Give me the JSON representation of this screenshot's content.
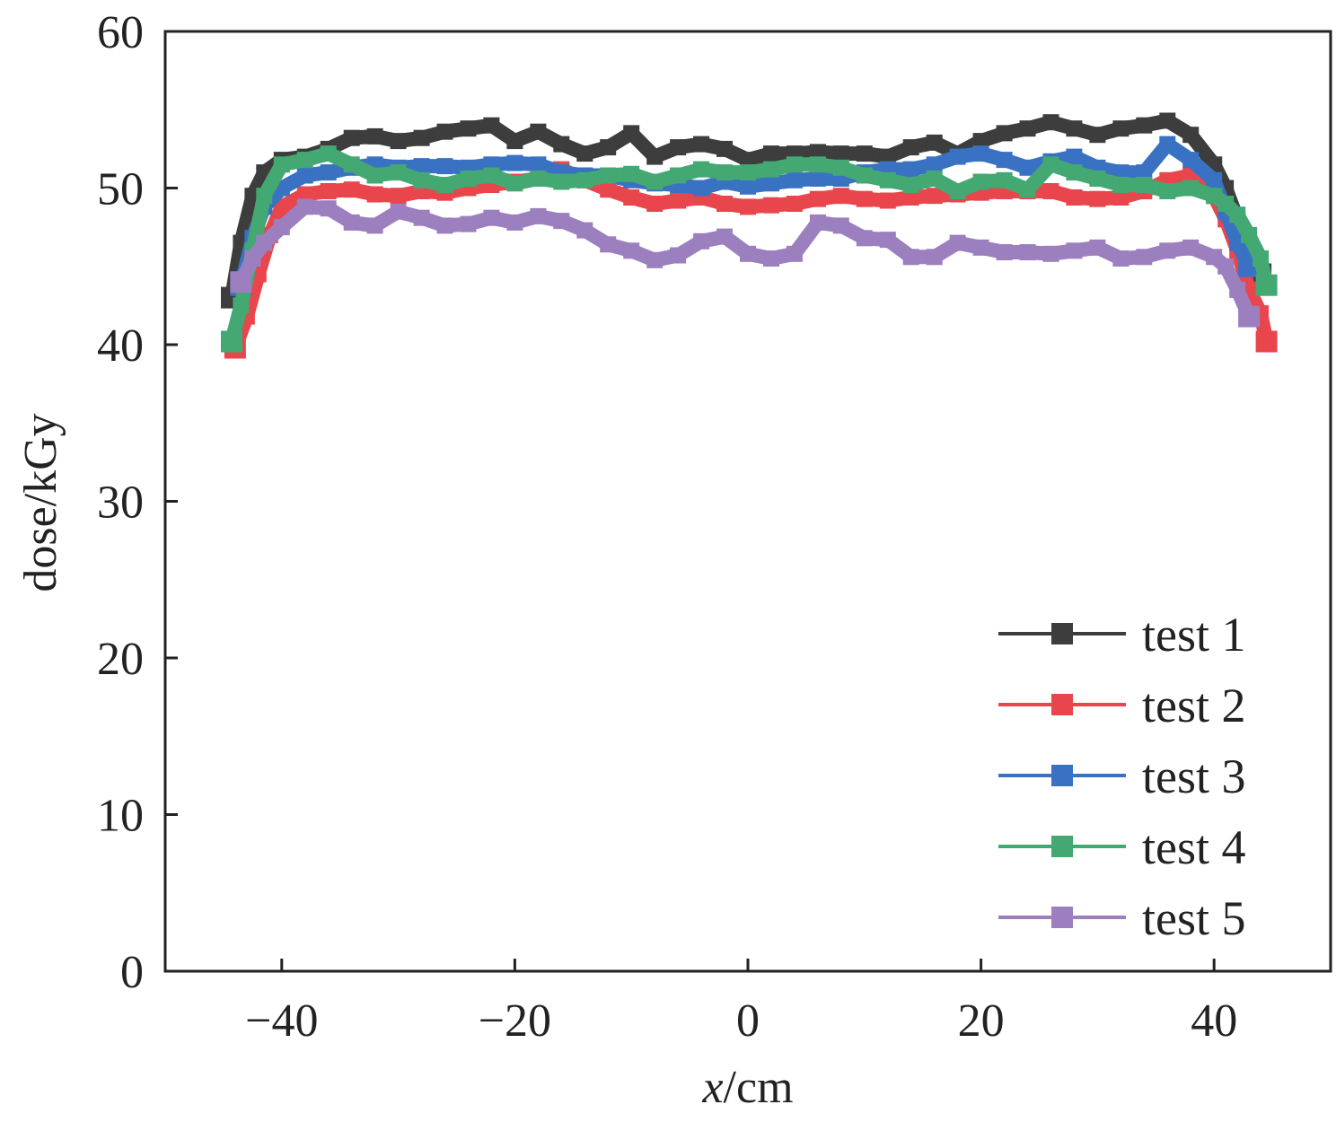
{
  "chart_data": {
    "type": "line",
    "xlabel_var": "x",
    "xlabel_unit": "/cm",
    "ylabel": "dose/kGy",
    "xlim": [
      -50,
      50
    ],
    "ylim": [
      0,
      60
    ],
    "xticks": [
      -40,
      -20,
      0,
      20,
      40
    ],
    "xtick_labels": [
      "−40",
      "−20",
      "0",
      "20",
      "40"
    ],
    "yticks": [
      0,
      10,
      20,
      30,
      40,
      50,
      60
    ],
    "ytick_labels": [
      "0",
      "10",
      "20",
      "30",
      "40",
      "50",
      "60"
    ],
    "grid": false,
    "legend_position": "bottom-right",
    "series": [
      {
        "name": "test 1",
        "color": "#3d3d3d",
        "x": [
          -44.3,
          -43.5,
          -42.5,
          -41.5,
          -40,
          -38,
          -36,
          -34,
          -32,
          -30,
          -28,
          -26,
          -24,
          -22,
          -20,
          -18,
          -16,
          -14,
          -12,
          -10,
          -8,
          -6,
          -4,
          -2,
          0,
          2,
          4,
          6,
          8,
          10,
          12,
          14,
          16,
          18,
          20,
          22,
          24,
          26,
          28,
          30,
          32,
          34,
          36,
          38,
          40,
          41,
          42,
          43,
          44
        ],
        "y": [
          43.0,
          46.5,
          49.5,
          51.0,
          51.8,
          52.0,
          52.5,
          53.2,
          53.3,
          53.0,
          53.2,
          53.6,
          53.8,
          54.0,
          53.0,
          53.6,
          52.8,
          52.2,
          52.6,
          53.5,
          52.0,
          52.6,
          52.8,
          52.5,
          51.8,
          52.2,
          52.2,
          52.3,
          52.2,
          52.2,
          52.0,
          52.6,
          52.9,
          52.2,
          53.0,
          53.5,
          53.8,
          54.2,
          53.8,
          53.4,
          53.8,
          54.0,
          54.3,
          53.4,
          51.5,
          50.0,
          48.0,
          46.0,
          44.5
        ]
      },
      {
        "name": "test 2",
        "color": "#e8464c",
        "x": [
          -44,
          -43,
          -42,
          -41,
          -40,
          -38,
          -36,
          -34,
          -32,
          -30,
          -28,
          -26,
          -24,
          -22,
          -20,
          -18,
          -16,
          -14,
          -12,
          -10,
          -8,
          -6,
          -4,
          -2,
          0,
          2,
          4,
          6,
          8,
          10,
          12,
          14,
          16,
          18,
          20,
          22,
          24,
          26,
          28,
          30,
          32,
          34,
          36,
          38,
          40,
          41,
          42,
          43,
          44,
          44.5
        ],
        "y": [
          39.8,
          41.8,
          44.5,
          47.0,
          48.8,
          49.6,
          49.8,
          49.9,
          49.6,
          49.5,
          49.8,
          49.7,
          50.0,
          50.2,
          50.4,
          50.6,
          51.2,
          50.5,
          49.9,
          49.4,
          49.0,
          49.2,
          49.4,
          49.0,
          48.8,
          48.9,
          49.0,
          49.3,
          49.5,
          49.3,
          49.2,
          49.4,
          49.5,
          49.6,
          49.7,
          49.8,
          49.8,
          49.8,
          49.4,
          49.3,
          49.4,
          49.8,
          50.5,
          50.8,
          49.5,
          48.0,
          46.0,
          43.5,
          42.0,
          40.2
        ]
      },
      {
        "name": "test 3",
        "color": "#3a72c3",
        "x": [
          -43.5,
          -42.5,
          -41.5,
          -40,
          -38,
          -36,
          -34,
          -32,
          -30,
          -28,
          -26,
          -24,
          -22,
          -20,
          -18,
          -16,
          -14,
          -12,
          -10,
          -8,
          -6,
          -4,
          -2,
          0,
          2,
          4,
          6,
          8,
          10,
          12,
          14,
          16,
          18,
          20,
          22,
          24,
          26,
          28,
          30,
          32,
          34,
          36,
          38,
          40,
          41,
          42,
          43
        ],
        "y": [
          43.8,
          46.8,
          48.8,
          50.0,
          50.8,
          51.0,
          51.3,
          51.5,
          51.3,
          51.4,
          51.4,
          51.3,
          51.5,
          51.6,
          51.5,
          51.0,
          50.8,
          50.8,
          50.5,
          50.3,
          50.2,
          50.0,
          50.4,
          50.1,
          50.3,
          50.5,
          50.6,
          50.6,
          51.0,
          51.2,
          51.2,
          51.5,
          52.0,
          52.2,
          51.8,
          51.3,
          51.7,
          52.0,
          51.3,
          51.0,
          51.0,
          52.8,
          51.8,
          50.5,
          48.5,
          46.5,
          45.0
        ]
      },
      {
        "name": "test 4",
        "color": "#43a872",
        "x": [
          -44.3,
          -43.5,
          -42.5,
          -41.5,
          -40,
          -38,
          -36,
          -34,
          -32,
          -30,
          -28,
          -26,
          -24,
          -22,
          -20,
          -18,
          -16,
          -14,
          -12,
          -10,
          -8,
          -6,
          -4,
          -2,
          0,
          2,
          4,
          6,
          8,
          10,
          12,
          14,
          16,
          18,
          20,
          22,
          24,
          26,
          28,
          30,
          32,
          34,
          36,
          38,
          40,
          41,
          42,
          43,
          44,
          44.5
        ],
        "y": [
          40.2,
          42.5,
          46.0,
          49.5,
          51.5,
          51.8,
          52.2,
          51.5,
          50.8,
          51.0,
          50.5,
          50.2,
          50.6,
          50.8,
          50.3,
          50.6,
          50.4,
          50.5,
          50.8,
          50.9,
          50.4,
          50.8,
          51.2,
          51.0,
          51.0,
          51.2,
          51.5,
          51.5,
          51.3,
          50.8,
          50.5,
          50.2,
          50.6,
          49.8,
          50.4,
          50.5,
          49.9,
          51.5,
          51.0,
          50.6,
          50.2,
          50.2,
          49.8,
          50.0,
          49.5,
          49.0,
          48.3,
          47.0,
          45.5,
          43.8
        ]
      },
      {
        "name": "test 5",
        "color": "#9c7fbf",
        "x": [
          -43.5,
          -42.5,
          -41.5,
          -40,
          -38,
          -36,
          -34,
          -32,
          -30,
          -28,
          -26,
          -24,
          -22,
          -20,
          -18,
          -16,
          -14,
          -12,
          -10,
          -8,
          -6,
          -4,
          -2,
          0,
          2,
          4,
          6,
          8,
          10,
          12,
          14,
          16,
          18,
          20,
          22,
          24,
          26,
          28,
          30,
          32,
          34,
          36,
          38,
          40,
          41,
          42,
          43
        ],
        "y": [
          44.0,
          45.5,
          46.5,
          47.5,
          48.8,
          48.7,
          47.8,
          47.6,
          48.5,
          48.1,
          47.6,
          47.7,
          48.1,
          47.8,
          48.2,
          47.9,
          47.3,
          46.4,
          46.0,
          45.4,
          45.7,
          46.6,
          46.9,
          45.8,
          45.5,
          45.8,
          47.8,
          47.6,
          46.8,
          46.7,
          45.6,
          45.6,
          46.5,
          46.2,
          45.9,
          45.9,
          45.8,
          46.0,
          46.2,
          45.5,
          45.6,
          46.0,
          46.2,
          45.6,
          45.0,
          43.5,
          41.8
        ]
      }
    ]
  }
}
